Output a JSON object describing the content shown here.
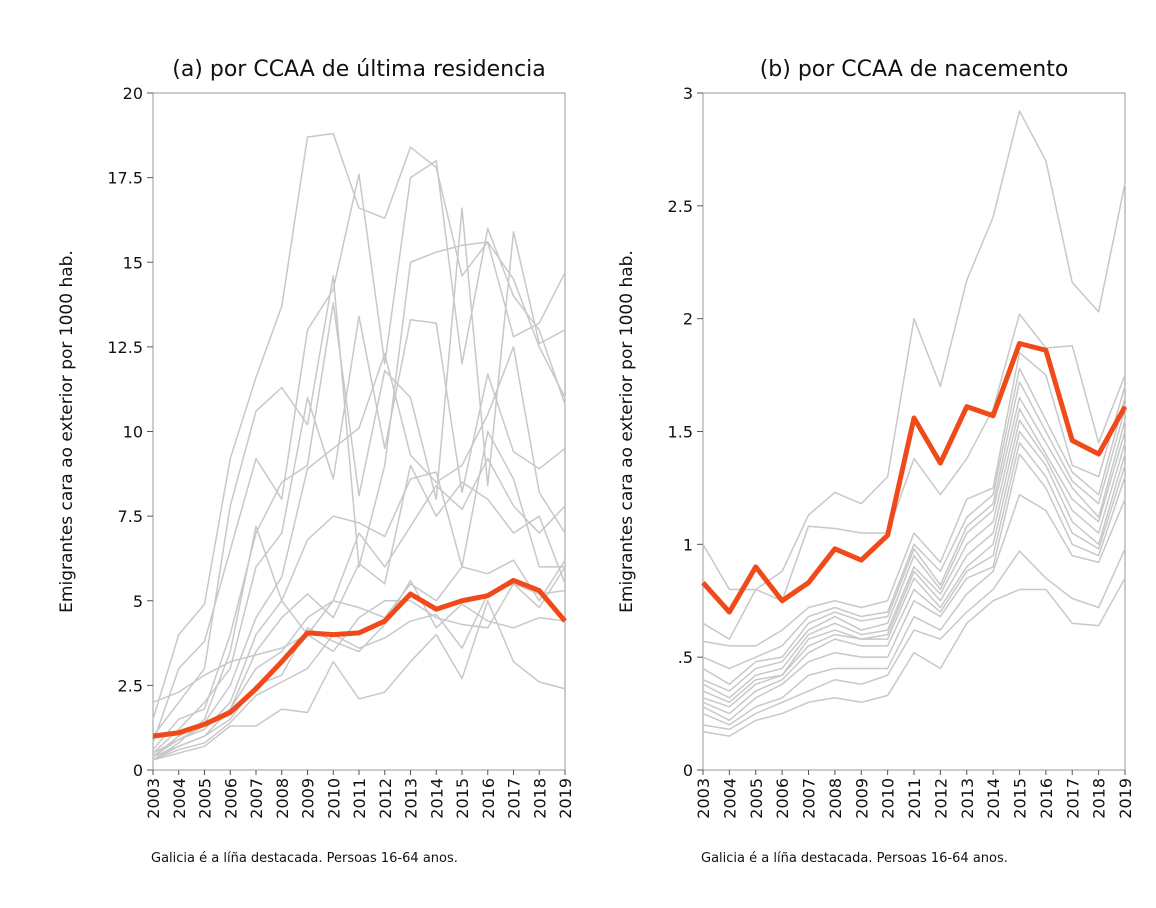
{
  "chart_data": [
    {
      "type": "line",
      "title": "(a) por CCAA de última residencia",
      "y_label": "Emigrantes cara ao exterior por 1000 hab.",
      "caption": "Galicia é a líña destacada. Persoas 16-64 anos.",
      "categories": [
        "2003",
        "2004",
        "2005",
        "2006",
        "2007",
        "2008",
        "2009",
        "2010",
        "2011",
        "2012",
        "2013",
        "2014",
        "2015",
        "2016",
        "2017",
        "2018",
        "2019"
      ],
      "ylim": [
        0,
        20
      ],
      "yticks": [
        0,
        2.5,
        5,
        7.5,
        10,
        12.5,
        15,
        17.5,
        20
      ],
      "series": [
        {
          "color": "#c8c8c8",
          "values": [
            1.5,
            4.0,
            4.9,
            9.2,
            11.6,
            13.7,
            18.7,
            18.8,
            16.6,
            16.3,
            18.4,
            17.8,
            14.6,
            15.6,
            12.8,
            13.2,
            14.7
          ]
        },
        {
          "color": "#c8c8c8",
          "values": [
            1.0,
            2.0,
            3.0,
            7.8,
            10.6,
            11.3,
            10.2,
            14.6,
            6.0,
            9.0,
            15.0,
            15.3,
            15.5,
            15.6,
            14.5,
            12.5,
            11.0
          ]
        },
        {
          "color": "#c8c8c8",
          "values": [
            0.8,
            3.0,
            3.8,
            6.5,
            9.2,
            8.0,
            13.0,
            14.2,
            17.6,
            12.0,
            17.5,
            18.0,
            12.0,
            16.0,
            14.0,
            13.0,
            10.8
          ]
        },
        {
          "color": "#c8c8c8",
          "values": [
            0.6,
            1.5,
            1.8,
            4.0,
            7.0,
            8.5,
            9.0,
            13.8,
            8.1,
            11.8,
            11.0,
            8.0,
            16.6,
            8.4,
            15.9,
            12.6,
            13.0
          ]
        },
        {
          "color": "#c8c8c8",
          "values": [
            0.5,
            1.2,
            2.0,
            3.0,
            6.0,
            7.0,
            11.0,
            8.6,
            13.4,
            9.5,
            13.3,
            13.2,
            8.2,
            11.7,
            9.4,
            8.9,
            9.5
          ]
        },
        {
          "color": "#c8c8c8",
          "values": [
            0.4,
            1.0,
            1.4,
            2.5,
            4.5,
            5.7,
            8.9,
            9.5,
            10.1,
            12.3,
            9.3,
            8.5,
            9.0,
            10.5,
            12.5,
            8.2,
            7.0
          ]
        },
        {
          "color": "#c8c8c8",
          "values": [
            0.4,
            0.9,
            1.2,
            2.0,
            4.0,
            5.0,
            6.8,
            7.5,
            7.3,
            6.9,
            8.6,
            8.8,
            6.0,
            10.0,
            8.6,
            6.0,
            6.0
          ]
        },
        {
          "color": "#c8c8c8",
          "values": [
            0.3,
            0.8,
            1.5,
            3.5,
            7.2,
            5.0,
            4.0,
            5.0,
            7.0,
            6.0,
            7.2,
            8.4,
            7.7,
            9.2,
            7.8,
            7.0,
            7.8
          ]
        },
        {
          "color": "#c8c8c8",
          "values": [
            0.3,
            0.7,
            1.0,
            1.8,
            3.5,
            4.5,
            5.2,
            4.5,
            6.1,
            5.5,
            9.0,
            7.5,
            8.5,
            8.0,
            7.0,
            7.5,
            5.5
          ]
        },
        {
          "color": "#c8c8c8",
          "values": [
            0.5,
            0.9,
            1.3,
            1.8,
            3.0,
            3.5,
            4.5,
            5.0,
            4.8,
            4.5,
            5.5,
            5.0,
            6.0,
            5.8,
            6.2,
            5.0,
            6.2
          ]
        },
        {
          "color": "#c8c8c8",
          "values": [
            0.4,
            0.7,
            1.0,
            1.5,
            2.5,
            2.8,
            4.2,
            3.8,
            3.5,
            4.3,
            5.6,
            4.2,
            4.9,
            4.4,
            4.2,
            4.5,
            4.4
          ]
        },
        {
          "color": "#c8c8c8",
          "values": [
            0.3,
            0.6,
            0.8,
            1.4,
            2.2,
            2.6,
            3.0,
            4.0,
            3.6,
            3.9,
            4.4,
            4.6,
            3.6,
            5.2,
            5.5,
            5.2,
            5.3
          ]
        },
        {
          "color": "#c8c8c8",
          "values": [
            0.3,
            0.5,
            0.7,
            1.3,
            1.3,
            1.8,
            1.7,
            3.2,
            2.1,
            2.3,
            3.2,
            4.0,
            2.7,
            5.0,
            3.2,
            2.6,
            2.4
          ]
        },
        {
          "color": "#c8c8c8",
          "values": [
            2.0,
            2.3,
            2.8,
            3.2,
            3.4,
            3.6,
            4.0,
            3.5,
            4.5,
            5.0,
            5.0,
            4.5,
            4.3,
            4.2,
            5.5,
            4.8,
            6.0
          ]
        },
        {
          "color": "#f04a1a",
          "highlight": true,
          "values": [
            1.0,
            1.1,
            1.35,
            1.7,
            2.4,
            3.2,
            4.05,
            4.0,
            4.05,
            4.4,
            5.2,
            4.75,
            5.0,
            5.15,
            5.6,
            5.3,
            4.4
          ]
        }
      ]
    },
    {
      "type": "line",
      "title": "(b) por CCAA de nacemento",
      "y_label": "Emigrantes cara ao exterior por 1000 hab.",
      "caption": "Galicia é a líña destacada. Persoas 16-64 anos.",
      "categories": [
        "2003",
        "2004",
        "2005",
        "2006",
        "2007",
        "2008",
        "2009",
        "2010",
        "2011",
        "2012",
        "2013",
        "2014",
        "2015",
        "2016",
        "2017",
        "2018",
        "2019"
      ],
      "ylim": [
        0,
        3
      ],
      "yticks": [
        0,
        {
          "value": 0.5,
          "label": ".5"
        },
        1,
        1.5,
        2,
        2.5,
        3
      ],
      "series": [
        {
          "color": "#c8c8c8",
          "values": [
            1.0,
            0.8,
            0.8,
            0.88,
            1.13,
            1.23,
            1.18,
            1.3,
            2.0,
            1.7,
            2.17,
            2.45,
            2.92,
            2.7,
            2.16,
            2.03,
            2.6
          ]
        },
        {
          "color": "#c8c8c8",
          "values": [
            0.65,
            0.58,
            0.8,
            0.75,
            1.08,
            1.07,
            1.05,
            1.05,
            1.38,
            1.22,
            1.38,
            1.6,
            2.02,
            1.87,
            1.88,
            1.45,
            1.75
          ]
        },
        {
          "color": "#c8c8c8",
          "values": [
            0.57,
            0.55,
            0.55,
            0.62,
            0.72,
            0.75,
            0.72,
            0.75,
            1.05,
            0.92,
            1.2,
            1.25,
            1.85,
            1.75,
            1.35,
            1.3,
            1.7
          ]
        },
        {
          "color": "#c8c8c8",
          "values": [
            0.5,
            0.45,
            0.5,
            0.55,
            0.68,
            0.72,
            0.68,
            0.7,
            1.0,
            0.88,
            1.12,
            1.22,
            1.78,
            1.55,
            1.32,
            1.22,
            1.65
          ]
        },
        {
          "color": "#c8c8c8",
          "values": [
            0.45,
            0.38,
            0.48,
            0.5,
            0.65,
            0.7,
            0.66,
            0.68,
            0.98,
            0.82,
            1.08,
            1.18,
            1.72,
            1.5,
            1.28,
            1.18,
            1.6
          ]
        },
        {
          "color": "#c8c8c8",
          "values": [
            0.4,
            0.35,
            0.45,
            0.48,
            0.62,
            0.68,
            0.62,
            0.65,
            0.95,
            0.8,
            1.05,
            1.15,
            1.65,
            1.45,
            1.25,
            1.12,
            1.55
          ]
        },
        {
          "color": "#c8c8c8",
          "values": [
            0.38,
            0.32,
            0.42,
            0.45,
            0.6,
            0.65,
            0.6,
            0.62,
            0.9,
            0.78,
            1.0,
            1.1,
            1.6,
            1.4,
            1.2,
            1.1,
            1.5
          ]
        },
        {
          "color": "#c8c8c8",
          "values": [
            0.35,
            0.3,
            0.4,
            0.42,
            0.58,
            0.62,
            0.58,
            0.6,
            0.88,
            0.75,
            0.95,
            1.05,
            1.55,
            1.38,
            1.15,
            1.05,
            1.45
          ]
        },
        {
          "color": "#c8c8c8",
          "values": [
            0.32,
            0.28,
            0.38,
            0.42,
            0.55,
            0.6,
            0.58,
            0.58,
            0.85,
            0.72,
            0.9,
            1.0,
            1.5,
            1.35,
            1.1,
            1.0,
            1.4
          ]
        },
        {
          "color": "#c8c8c8",
          "values": [
            0.3,
            0.25,
            0.35,
            0.4,
            0.52,
            0.58,
            0.55,
            0.55,
            0.8,
            0.7,
            0.88,
            0.95,
            1.45,
            1.3,
            1.05,
            0.98,
            1.35
          ]
        },
        {
          "color": "#c8c8c8",
          "values": [
            0.28,
            0.22,
            0.32,
            0.38,
            0.48,
            0.52,
            0.5,
            0.5,
            0.75,
            0.68,
            0.85,
            0.9,
            1.4,
            1.25,
            1.0,
            0.95,
            1.3
          ]
        },
        {
          "color": "#c8c8c8",
          "values": [
            0.25,
            0.2,
            0.28,
            0.32,
            0.42,
            0.45,
            0.45,
            0.45,
            0.68,
            0.62,
            0.78,
            0.88,
            1.22,
            1.15,
            0.95,
            0.92,
            1.2
          ]
        },
        {
          "color": "#c8c8c8",
          "values": [
            0.2,
            0.18,
            0.25,
            0.3,
            0.35,
            0.4,
            0.38,
            0.42,
            0.62,
            0.58,
            0.7,
            0.8,
            0.97,
            0.85,
            0.76,
            0.72,
            0.98
          ]
        },
        {
          "color": "#c8c8c8",
          "values": [
            0.17,
            0.15,
            0.22,
            0.25,
            0.3,
            0.32,
            0.3,
            0.33,
            0.52,
            0.45,
            0.65,
            0.75,
            0.8,
            0.8,
            0.65,
            0.64,
            0.85
          ]
        },
        {
          "color": "#f04a1a",
          "highlight": true,
          "values": [
            0.83,
            0.7,
            0.9,
            0.75,
            0.83,
            0.98,
            0.93,
            1.04,
            1.56,
            1.36,
            1.61,
            1.57,
            1.89,
            1.86,
            1.46,
            1.4,
            1.61
          ]
        }
      ]
    }
  ]
}
